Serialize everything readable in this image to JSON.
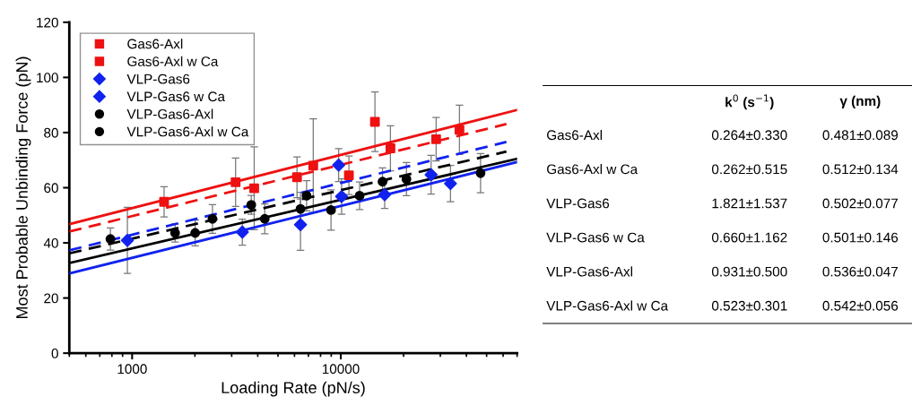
{
  "chart_data": [
    {
      "type": "scatter",
      "xlabel": "Loading Rate (pN/s)",
      "ylabel": "Most Probable Unbinding Force (pN)",
      "log": "x",
      "xlim": [
        500,
        70000
      ],
      "xticks": [
        1000,
        10000
      ],
      "ylim": [
        0,
        120
      ],
      "yticks": [
        0,
        20,
        40,
        60,
        80,
        100,
        120
      ],
      "grid": false,
      "legend": "top left",
      "series": [
        {
          "name": "Gas6-Axl",
          "color": "#ee1111",
          "marker": "square",
          "x": [
            1423,
            3847,
            7380,
            14580,
            28640
          ],
          "values": [
            54.9,
            59.8,
            68.0,
            83.9,
            77.6
          ],
          "errors": [
            5.5,
            15,
            17,
            10.8,
            7.9
          ]
        },
        {
          "name": "Gas6-Axl w Ca",
          "color": "#ee1111",
          "marker": "square",
          "x": [
            3133,
            6170,
            10940,
            17300,
            37050
          ],
          "values": [
            62.0,
            63.8,
            64.5,
            74.3,
            81.0
          ],
          "errors": [
            8.8,
            7.4,
            7,
            8.2,
            8.9
          ]
        },
        {
          "name": "VLP-Gas6",
          "color": "#1122ee",
          "marker": "diamond",
          "x": [
            3375,
            6412,
            10090,
            16230,
            33560
          ],
          "values": [
            43.9,
            46.6,
            56.8,
            57.5,
            61.5
          ],
          "errors": [
            4.7,
            9.3,
            6.4,
            5,
            6.6
          ]
        },
        {
          "name": "VLP-Gas6 w Ca",
          "color": "#1122ee",
          "marker": "diamond",
          "x": [
            949,
            9770,
            27100
          ],
          "values": [
            40.9,
            68.2,
            64.7
          ],
          "errors": [
            12,
            6,
            7
          ]
        },
        {
          "name": "VLP-Gas6-Axl",
          "color": "#000000",
          "marker": "circle",
          "x": [
            2005,
            4322,
            6412,
            8980,
            12310,
            20640,
            46770
          ],
          "values": [
            43.6,
            48.7,
            52.3,
            51.9,
            57.1,
            63.1,
            65.3
          ],
          "errors": [
            4.7,
            5.4,
            6,
            7.3,
            5,
            6,
            7.1
          ]
        },
        {
          "name": "VLP-Gas6-Axl w Ca",
          "color": "#000000",
          "marker": "circle",
          "x": [
            787,
            1607,
            2427,
            3724,
            6856,
            15850
          ],
          "values": [
            41.4,
            43.6,
            48.7,
            53.8,
            57.1,
            62.2
          ],
          "errors": [
            4,
            3.3,
            5.2,
            3.4,
            5.5,
            5
          ]
        },
        {
          "type": "line",
          "color": "#ee1111",
          "line_style": "solid",
          "x": [
            500,
            70000
          ],
          "values": [
            46.8,
            88.2
          ]
        },
        {
          "type": "line",
          "color": "#ee1111",
          "line_style": "dashed",
          "x": [
            500,
            62200
          ],
          "values": [
            44.1,
            83.1
          ]
        },
        {
          "type": "line",
          "color": "#1122ee",
          "line_style": "solid",
          "x": [
            500,
            70000
          ],
          "values": [
            28.9,
            69.3
          ]
        },
        {
          "type": "line",
          "color": "#1122ee",
          "line_style": "dashed",
          "x": [
            500,
            62200
          ],
          "values": [
            37.3,
            76.6
          ]
        },
        {
          "type": "line",
          "color": "#000000",
          "line_style": "solid",
          "x": [
            500,
            70000
          ],
          "values": [
            32.7,
            70.5
          ]
        },
        {
          "type": "line",
          "color": "#000000",
          "line_style": "dashed",
          "x": [
            500,
            62200
          ],
          "values": [
            36.2,
            73.1
          ]
        }
      ]
    },
    {
      "type": "other",
      "categories": [
        "k$^{0}$ (s$^{−1}$)",
        "γ (nm)"
      ],
      "y_categories": [
        "Gas6-Axl",
        "Gas6-Axl w Ca",
        "VLP-Gas6",
        "VLP-Gas6 w Ca",
        "VLP-Gas6-Axl",
        "VLP-Gas6-Axl w Ca"
      ],
      "cell_labels": [
        [
          "0.264±0.330",
          "0.481±0.089"
        ],
        [
          "0.262±0.515",
          "0.512±0.134"
        ],
        [
          "1.821±1.537",
          "0.502±0.077"
        ],
        [
          "0.660±1.162",
          "0.501±0.146"
        ],
        [
          "0.931±0.500",
          "0.536±0.047"
        ],
        [
          "0.523±0.301",
          "0.542±0.056"
        ]
      ]
    }
  ]
}
